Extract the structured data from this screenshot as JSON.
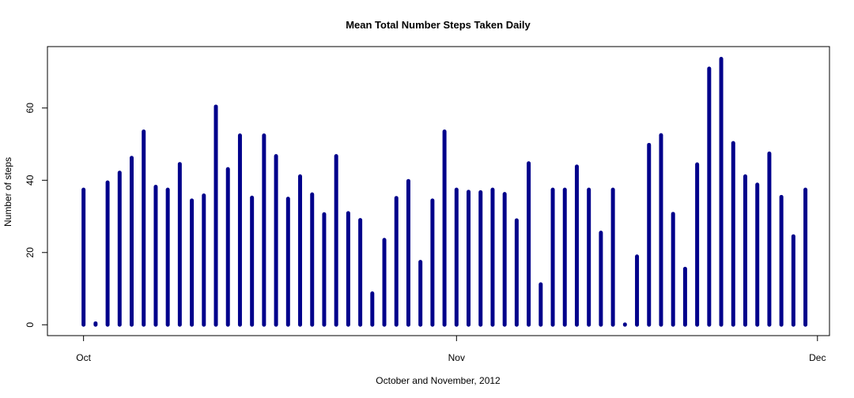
{
  "chart_data": {
    "type": "line",
    "plot_style": "vertical-lines",
    "title": "Mean Total Number Steps Taken Daily",
    "xlabel": "October and November, 2012",
    "ylabel": "Number of steps",
    "x_ticks": [
      {
        "date": "2012-10-01",
        "label": "Oct"
      },
      {
        "date": "2012-11-01",
        "label": "Nov"
      },
      {
        "date": "2012-12-01",
        "label": "Dec"
      }
    ],
    "y_ticks": [
      0,
      20,
      40,
      60
    ],
    "xlim": [
      "2012-09-28",
      "2012-12-02"
    ],
    "ylim": [
      -3,
      77
    ],
    "colors": {
      "bars": "#00008B",
      "axes": "#000000"
    },
    "series": [
      {
        "x": [
          "2012-10-01",
          "2012-10-02",
          "2012-10-03",
          "2012-10-04",
          "2012-10-05",
          "2012-10-06",
          "2012-10-07",
          "2012-10-08",
          "2012-10-09",
          "2012-10-10",
          "2012-10-11",
          "2012-10-12",
          "2012-10-13",
          "2012-10-14",
          "2012-10-15",
          "2012-10-16",
          "2012-10-17",
          "2012-10-18",
          "2012-10-19",
          "2012-10-20",
          "2012-10-21",
          "2012-10-22",
          "2012-10-23",
          "2012-10-24",
          "2012-10-25",
          "2012-10-26",
          "2012-10-27",
          "2012-10-28",
          "2012-10-29",
          "2012-10-30",
          "2012-10-31",
          "2012-11-01",
          "2012-11-02",
          "2012-11-03",
          "2012-11-04",
          "2012-11-05",
          "2012-11-06",
          "2012-11-07",
          "2012-11-08",
          "2012-11-09",
          "2012-11-10",
          "2012-11-11",
          "2012-11-12",
          "2012-11-13",
          "2012-11-14",
          "2012-11-15",
          "2012-11-16",
          "2012-11-17",
          "2012-11-18",
          "2012-11-19",
          "2012-11-20",
          "2012-11-21",
          "2012-11-22",
          "2012-11-23",
          "2012-11-24",
          "2012-11-25",
          "2012-11-26",
          "2012-11-27",
          "2012-11-28",
          "2012-11-29",
          "2012-11-30"
        ],
        "values": [
          37.4,
          0.4,
          39.4,
          42.1,
          46.2,
          53.5,
          38.2,
          37.4,
          44.5,
          34.4,
          35.8,
          60.4,
          43.1,
          52.4,
          35.2,
          52.4,
          46.7,
          34.9,
          41.1,
          36.1,
          30.6,
          46.7,
          30.9,
          29.0,
          8.7,
          23.5,
          35.1,
          39.8,
          17.4,
          34.4,
          53.5,
          37.4,
          36.8,
          36.7,
          37.4,
          36.2,
          28.9,
          44.7,
          11.2,
          37.4,
          37.4,
          43.8,
          37.4,
          25.5,
          37.4,
          0.1,
          18.9,
          49.8,
          52.5,
          30.7,
          15.5,
          44.4,
          70.9,
          73.6,
          50.3,
          41.1,
          38.8,
          47.4,
          35.4,
          24.5,
          37.4
        ]
      }
    ]
  }
}
